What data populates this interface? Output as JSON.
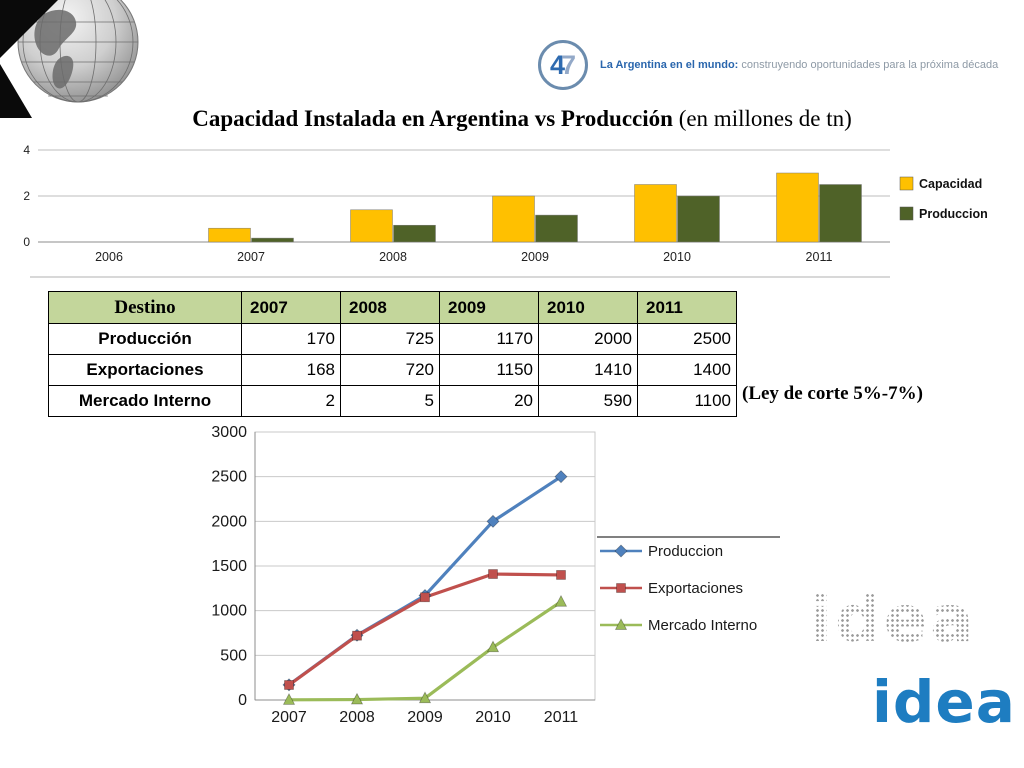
{
  "header": {
    "logo_4": "4",
    "logo_7": "7",
    "brand_bold": "La Argentina en el mundo:",
    "brand_regular": " construyendo oportunidades para la próxima década"
  },
  "title": {
    "bold": "Capacidad Instalada en Argentina vs Producción",
    "regular": " (en millones de tn)"
  },
  "annotation": "(Ley de corte 5%-7%)",
  "watermark_text": "idea",
  "logo_text": "idea",
  "table": {
    "header_bg": "#c3d69b",
    "headers": [
      "Destino",
      "2007",
      "2008",
      "2009",
      "2010",
      "2011"
    ],
    "rows": [
      {
        "label": "Producción",
        "values": [
          170,
          725,
          1170,
          2000,
          2500
        ]
      },
      {
        "label": "Exportaciones",
        "values": [
          168,
          720,
          1150,
          1410,
          1400
        ]
      },
      {
        "label": "Mercado Interno",
        "values": [
          2,
          5,
          20,
          590,
          1100
        ]
      }
    ]
  },
  "chart_data": [
    {
      "type": "bar",
      "title": "Capacidad Instalada en Argentina vs Producción (en millones de tn)",
      "categories": [
        "2006",
        "2007",
        "2008",
        "2009",
        "2010",
        "2011"
      ],
      "series": [
        {
          "name": "Capacidad",
          "color": "#ffc000",
          "values": [
            0,
            0.6,
            1.4,
            2.0,
            2.5,
            3.0
          ]
        },
        {
          "name": "Produccion",
          "color": "#4f6228",
          "values": [
            0,
            0.17,
            0.73,
            1.17,
            2.0,
            2.5
          ]
        }
      ],
      "ylim": [
        0,
        4
      ],
      "yticks": [
        0,
        2,
        4
      ],
      "legend_position": "right",
      "grid": true
    },
    {
      "type": "line",
      "categories": [
        "2007",
        "2008",
        "2009",
        "2010",
        "2011"
      ],
      "series": [
        {
          "name": "Produccion",
          "color": "#4f81bd",
          "marker": "diamond",
          "values": [
            170,
            725,
            1170,
            2000,
            2500
          ]
        },
        {
          "name": "Exportaciones",
          "color": "#c0504d",
          "marker": "square",
          "values": [
            168,
            720,
            1150,
            1410,
            1400
          ]
        },
        {
          "name": "Mercado Interno",
          "color": "#9bbb59",
          "marker": "triangle",
          "values": [
            2,
            5,
            20,
            590,
            1100
          ]
        }
      ],
      "ylim": [
        0,
        3000
      ],
      "ytick_step": 500,
      "legend_position": "right",
      "grid": true
    }
  ]
}
